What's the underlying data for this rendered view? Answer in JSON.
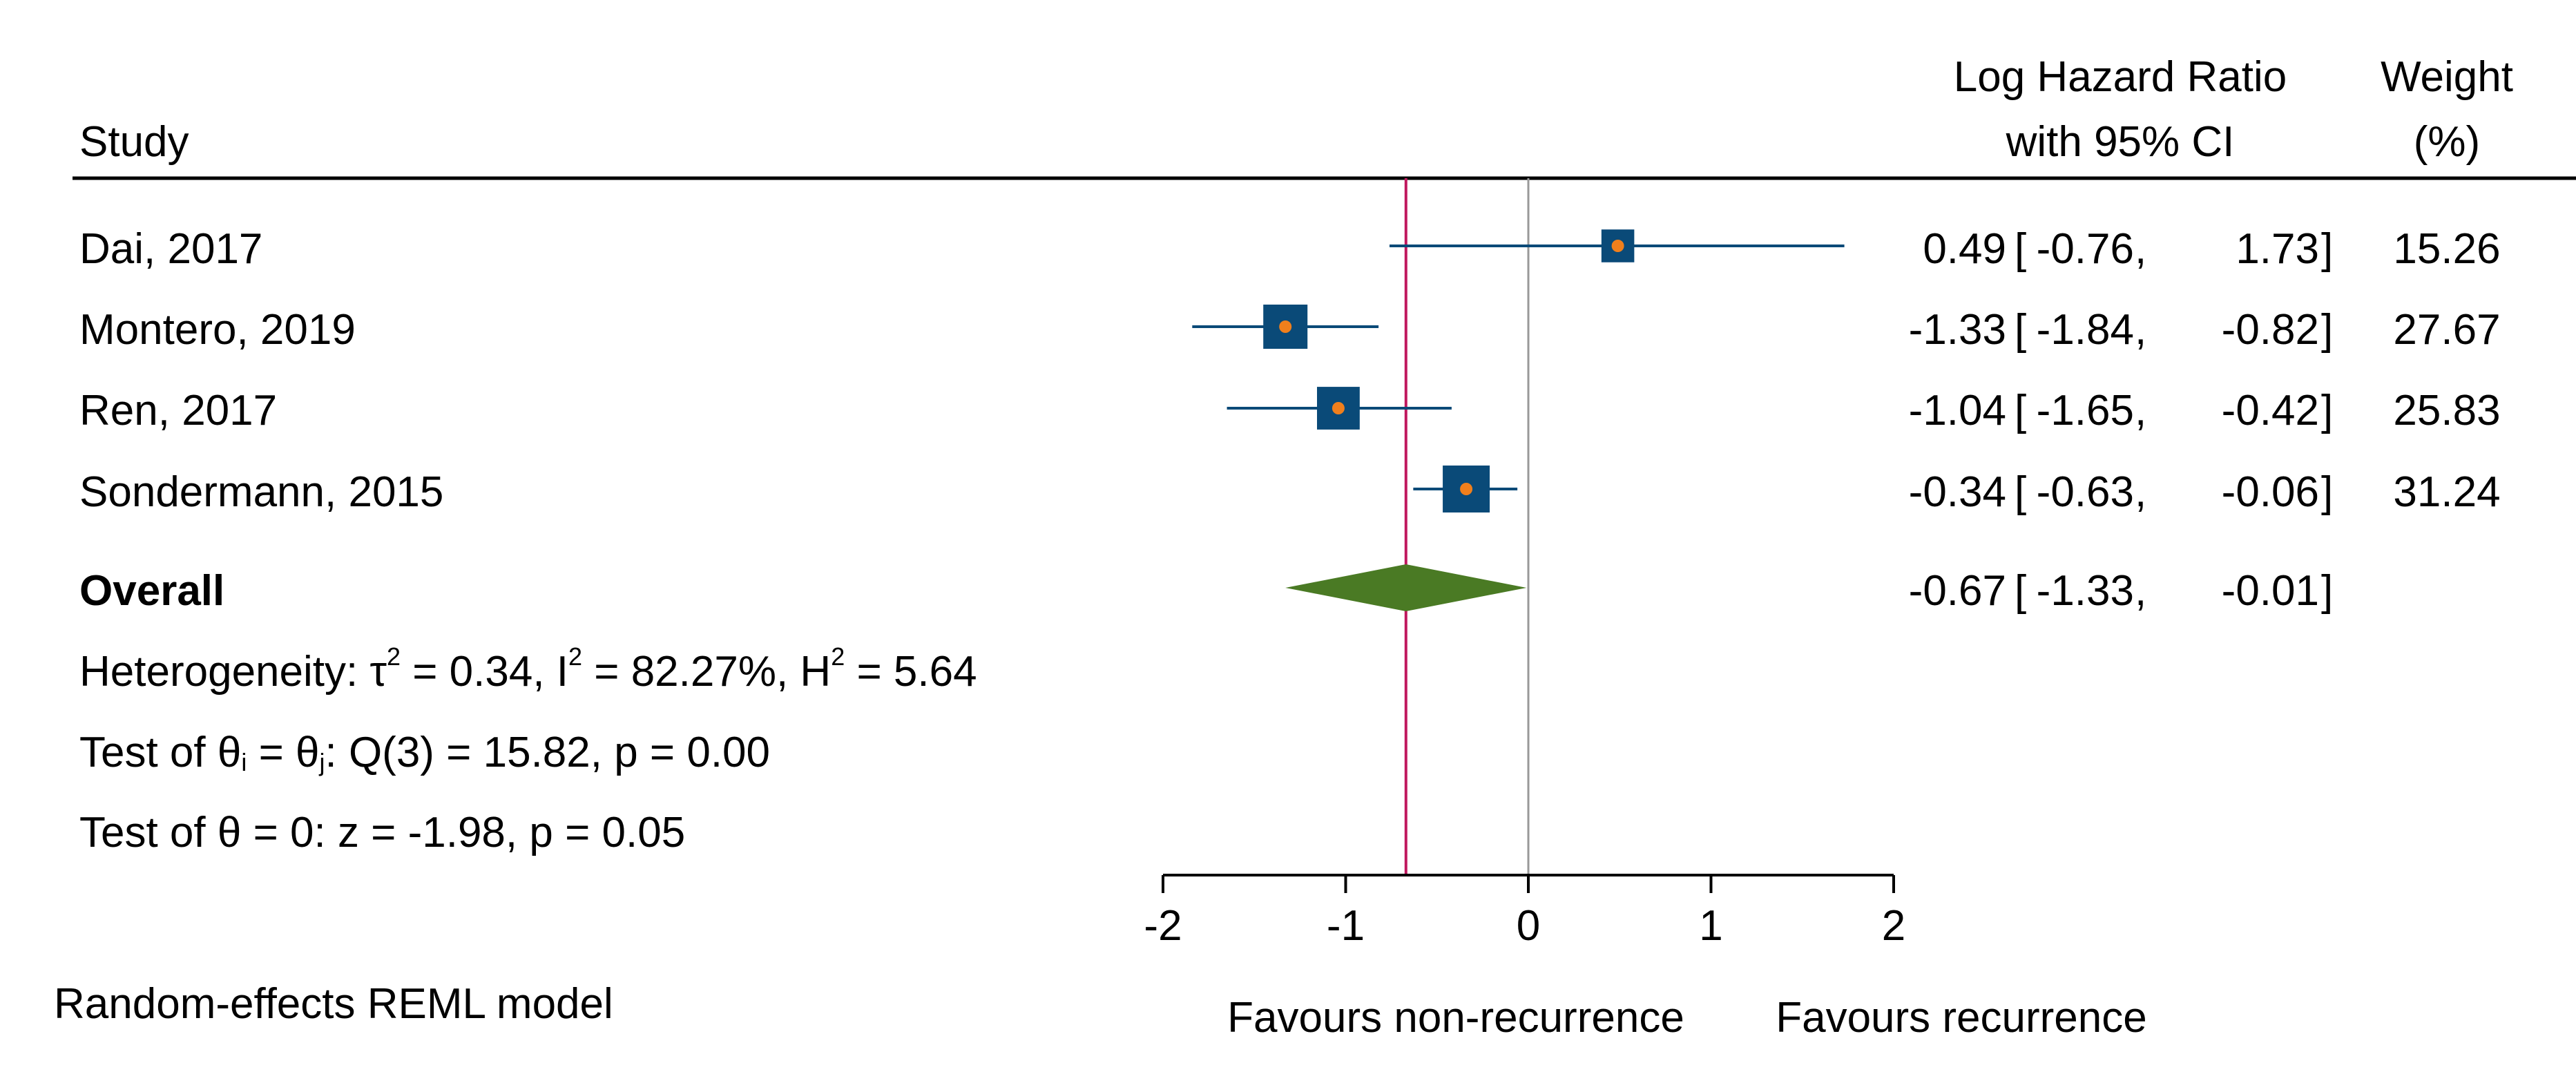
{
  "chart_data": {
    "type": "forest",
    "columns": {
      "study_header": "Study",
      "effect_header_line1": "Log Hazard Ratio",
      "effect_header_line2": "with 95% CI",
      "weight_header_line1": "Weight",
      "weight_header_line2": "(%)"
    },
    "studies": [
      {
        "label": "Dai, 2017",
        "estimate": 0.49,
        "lower": -0.76,
        "upper": 1.73,
        "weight": 15.26,
        "estimate_text": "0.49",
        "lower_text": "-0.76",
        "upper_text": "1.73",
        "weight_text": "15.26"
      },
      {
        "label": "Montero, 2019",
        "estimate": -1.33,
        "lower": -1.84,
        "upper": -0.82,
        "weight": 27.67,
        "estimate_text": "-1.33",
        "lower_text": "-1.84",
        "upper_text": "-0.82",
        "weight_text": "27.67"
      },
      {
        "label": "Ren, 2017",
        "estimate": -1.04,
        "lower": -1.65,
        "upper": -0.42,
        "weight": 25.83,
        "estimate_text": "-1.04",
        "lower_text": "-1.65",
        "upper_text": "-0.42",
        "weight_text": "25.83"
      },
      {
        "label": "Sondermann, 2015",
        "estimate": -0.34,
        "lower": -0.63,
        "upper": -0.06,
        "weight": 31.24,
        "estimate_text": "-0.34",
        "lower_text": "-0.63",
        "upper_text": "-0.06",
        "weight_text": "31.24"
      }
    ],
    "overall": {
      "label": "Overall",
      "estimate": -0.67,
      "lower": -1.33,
      "upper": -0.01,
      "estimate_text": "-0.67",
      "lower_text": "-1.33",
      "upper_text": "-0.01"
    },
    "stats": {
      "heterogeneity_prefix": "Heterogeneity: τ",
      "tau_sq_text": " = 0.34, I",
      "i_sq_text": " = 82.27%, H",
      "h_sq_text": " = 5.64",
      "superscript": "2",
      "test_homogeneity_prefix": "Test of θ",
      "sub_i": "i",
      "equals_theta": " = θ",
      "sub_j": "j",
      "test_homogeneity_rest": ": Q(3) = 15.82, p = 0.00",
      "test_overall": "Test of θ = 0: z = -1.98, p = 0.05"
    },
    "x_axis": {
      "range": [
        -2,
        2
      ],
      "ticks": [
        -2,
        -1,
        0,
        1,
        2
      ],
      "tick_labels": [
        "-2",
        "-1",
        "0",
        "1",
        "2"
      ],
      "favours_left": "Favours non-recurrence",
      "favours_right": "Favours recurrence"
    },
    "reference_line": 0,
    "overall_line": -0.67,
    "model_note": "Random-effects REML model",
    "colors": {
      "marker": "#0a4a78",
      "ci_line": "#0a4a78",
      "point": "#f07f1c",
      "diamond": "#4a7a24",
      "overall_line": "#c0185e",
      "reference_line": "#999999",
      "text": "#000000"
    }
  }
}
